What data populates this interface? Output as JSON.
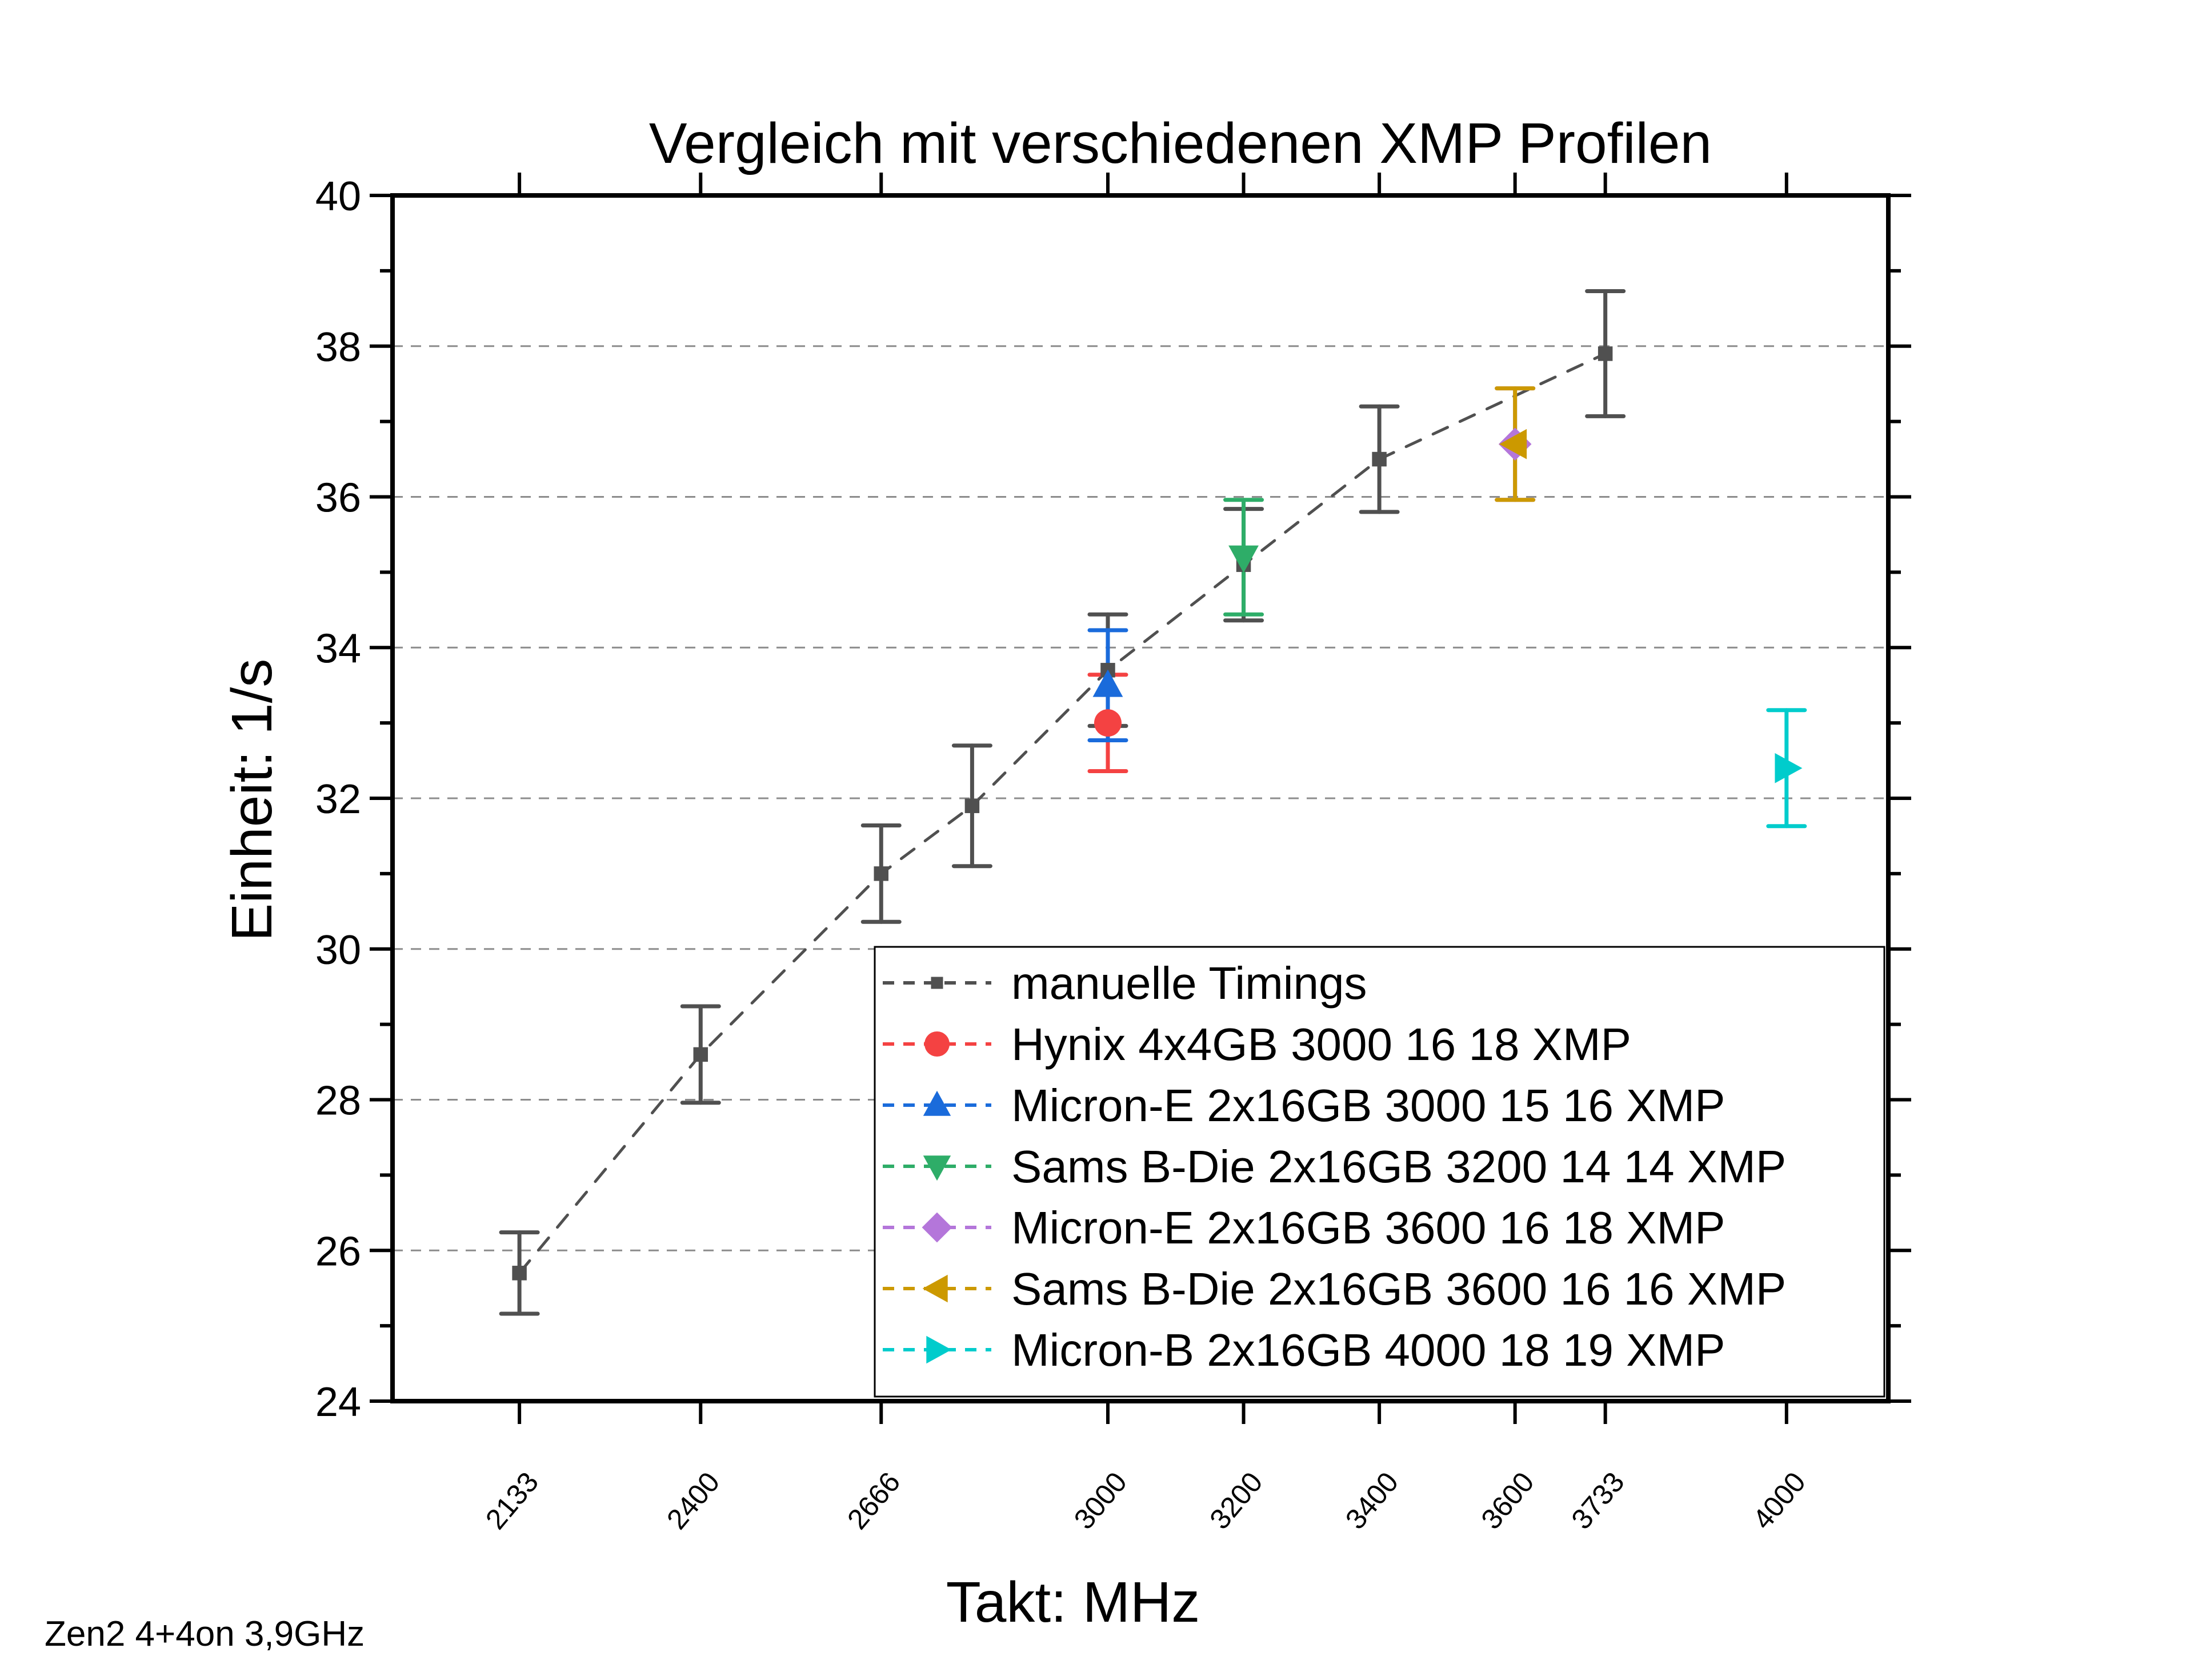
{
  "chart_data": {
    "type": "scatter",
    "title": "Vergleich mit verschiedenen XMP Profilen",
    "xlabel": "Takt: MHz",
    "ylabel": "Einheit: 1/s",
    "footnote": "Zen2 4+4on 3,9GHz",
    "xlim": [
      1946,
      4150
    ],
    "ylim": [
      24,
      40
    ],
    "xticks": [
      2133,
      2400,
      2666,
      3000,
      3200,
      3400,
      3600,
      3733,
      4000
    ],
    "xtick_labels": [
      "2133",
      "2400",
      "2666",
      "3000",
      "3200",
      "3400",
      "3600",
      "3733",
      "4000"
    ],
    "yticks": [
      24,
      26,
      28,
      30,
      32,
      34,
      36,
      38,
      40
    ],
    "ytick_labels": [
      "24",
      "26",
      "28",
      "30",
      "32",
      "34",
      "36",
      "38",
      "40"
    ],
    "y_minor_step": 1,
    "grid": "horizontal dashed at major y ticks",
    "legend_position": "lower-right",
    "series": [
      {
        "name": "manuelle Timings",
        "color": "#505050",
        "marker": "square",
        "connected": true,
        "x": [
          2133,
          2400,
          2666,
          2800,
          3000,
          3200,
          3400,
          3733
        ],
        "y": [
          25.7,
          28.6,
          31.0,
          31.9,
          33.7,
          35.1,
          36.5,
          37.9
        ],
        "yerr": [
          0.54,
          0.64,
          0.64,
          0.8,
          0.74,
          0.74,
          0.7,
          0.83
        ]
      },
      {
        "name": "Hynix 4x4GB 3000 16 18 XMP",
        "color": "#F44242",
        "marker": "circle",
        "connected": false,
        "x": [
          3000
        ],
        "y": [
          33.0
        ],
        "yerr": [
          0.64
        ]
      },
      {
        "name": "Micron-E 2x16GB 3000 15 16 XMP",
        "color": "#1A6BDB",
        "marker": "triangle-up",
        "connected": false,
        "x": [
          3000
        ],
        "y": [
          33.5
        ],
        "yerr": [
          0.73
        ]
      },
      {
        "name": "Sams B-Die 2x16GB 3200 14 14 XMP",
        "color": "#2EAD68",
        "marker": "triangle-down",
        "connected": false,
        "x": [
          3200
        ],
        "y": [
          35.2
        ],
        "yerr": [
          0.76
        ]
      },
      {
        "name": "Micron-E 2x16GB 3600 16 18 XMP",
        "color": "#B476DA",
        "marker": "diamond",
        "connected": false,
        "x": [
          3600
        ],
        "y": [
          36.7
        ],
        "yerr": [
          0.74
        ]
      },
      {
        "name": "Sams B-Die 2x16GB 3600 16 16 XMP",
        "color": "#CC9900",
        "marker": "triangle-left",
        "connected": false,
        "x": [
          3600
        ],
        "y": [
          36.7
        ],
        "yerr": [
          0.74
        ]
      },
      {
        "name": "Micron-B 2x16GB 4000 18 19 XMP",
        "color": "#00CCCC",
        "marker": "triangle-right",
        "connected": false,
        "x": [
          4000
        ],
        "y": [
          32.4
        ],
        "yerr": [
          0.77
        ]
      }
    ]
  }
}
